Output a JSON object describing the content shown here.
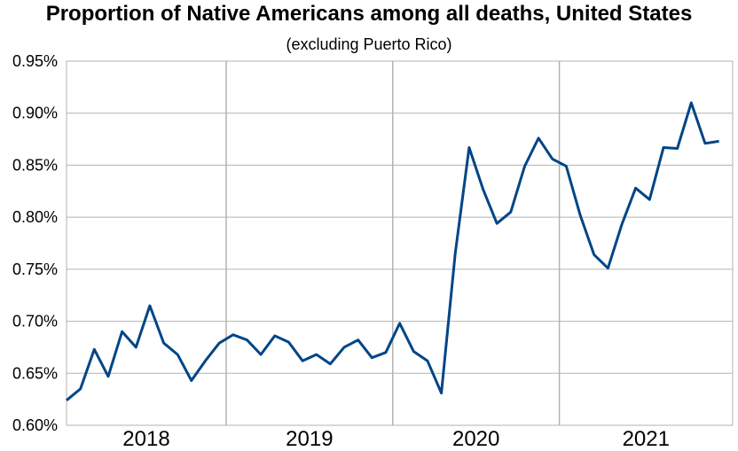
{
  "chart_data": {
    "type": "line",
    "title": "Proportion of Native Americans among all deaths, United States",
    "subtitle": "(excluding Puerto Rico)",
    "xlabel": "",
    "ylabel": "",
    "ylim": [
      0.6,
      0.95
    ],
    "yticks": [
      "0.60%",
      "0.65%",
      "0.70%",
      "0.75%",
      "0.80%",
      "0.85%",
      "0.90%",
      "0.95%"
    ],
    "ytick_values": [
      0.6,
      0.65,
      0.7,
      0.75,
      0.8,
      0.85,
      0.9,
      0.95
    ],
    "year_labels": [
      "2018",
      "2019",
      "2020",
      "2021"
    ],
    "grid": true,
    "line_color": "#004586",
    "grid_color": "#b3b3b3",
    "series": [
      {
        "values": [
          0.624,
          0.635,
          0.673,
          0.647,
          0.69,
          0.675,
          0.715,
          0.679,
          0.668,
          0.643,
          0.662,
          0.679,
          0.687,
          0.682,
          0.668,
          0.686,
          0.68,
          0.662,
          0.668,
          0.659,
          0.675,
          0.682,
          0.665,
          0.67,
          0.698,
          0.671,
          0.662,
          0.631,
          0.765,
          0.867,
          0.827,
          0.794,
          0.805,
          0.849,
          0.876,
          0.856,
          0.849,
          0.802,
          0.764,
          0.751,
          0.793,
          0.828,
          0.817,
          0.867,
          0.866,
          0.91,
          0.871,
          0.873
        ]
      }
    ]
  }
}
